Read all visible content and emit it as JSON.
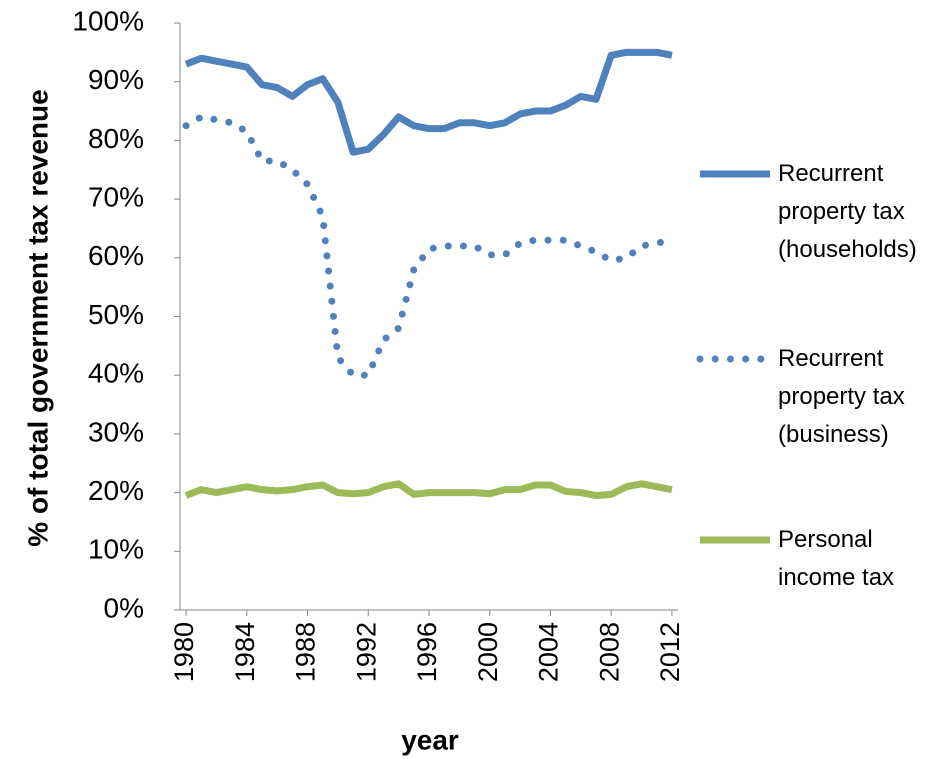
{
  "chart_data": {
    "type": "line",
    "x_label": "year",
    "y_label": "% of total government tax revenue",
    "x": [
      1980,
      1981,
      1982,
      1983,
      1984,
      1985,
      1986,
      1987,
      1988,
      1989,
      1990,
      1991,
      1992,
      1993,
      1994,
      1995,
      1996,
      1997,
      1998,
      1999,
      2000,
      2001,
      2002,
      2003,
      2004,
      2005,
      2006,
      2007,
      2008,
      2009,
      2010,
      2011,
      2012
    ],
    "xlim": [
      1979.6,
      2012.4
    ],
    "xticks": [
      1980,
      1984,
      1988,
      1992,
      1996,
      2000,
      2004,
      2008,
      2012
    ],
    "ylim": [
      0,
      100
    ],
    "yticks": [
      {
        "value": 0,
        "label": "0%"
      },
      {
        "value": 10,
        "label": "10%"
      },
      {
        "value": 20,
        "label": "20%"
      },
      {
        "value": 30,
        "label": "30%"
      },
      {
        "value": 40,
        "label": "40%"
      },
      {
        "value": 50,
        "label": "50%"
      },
      {
        "value": 60,
        "label": "60%"
      },
      {
        "value": 70,
        "label": "70%"
      },
      {
        "value": 80,
        "label": "80%"
      },
      {
        "value": 90,
        "label": "90%"
      },
      {
        "value": 100,
        "label": "100%"
      }
    ],
    "grid": false,
    "legend": "right",
    "series": [
      {
        "name": "Recurrent property tax (households)",
        "color": "#4f81bd",
        "style": "solid",
        "values": [
          93,
          94,
          93.5,
          93,
          92.5,
          89.5,
          89,
          87.5,
          89.5,
          90.5,
          86.5,
          78,
          78.5,
          81,
          84,
          82.5,
          82,
          82,
          83,
          83,
          82.5,
          83,
          84.5,
          85,
          85,
          86,
          87.5,
          87,
          94.5,
          95,
          95,
          95,
          94.5
        ]
      },
      {
        "name": "Recurrent property tax (business)",
        "color": "#4f81bd",
        "style": "dotted",
        "values": [
          82.5,
          84,
          83.5,
          83,
          81.5,
          76.5,
          76.5,
          75,
          72.5,
          67,
          43,
          40,
          40,
          46,
          48,
          58,
          61.5,
          62,
          62,
          62,
          60.5,
          60.5,
          62.5,
          63,
          63,
          63,
          62,
          61,
          59.5,
          60,
          62,
          62.5,
          63
        ]
      },
      {
        "name": "Personal income tax",
        "color": "#9bbb59",
        "style": "solid",
        "values": [
          19.5,
          20.5,
          20,
          20.5,
          21,
          20.5,
          20.3,
          20.5,
          21,
          21.3,
          20,
          19.8,
          20,
          21,
          21.5,
          19.7,
          20,
          20,
          20,
          20,
          19.8,
          20.5,
          20.5,
          21.3,
          21.3,
          20.2,
          20,
          19.5,
          19.7,
          21,
          21.5,
          21,
          20.5
        ]
      }
    ]
  }
}
